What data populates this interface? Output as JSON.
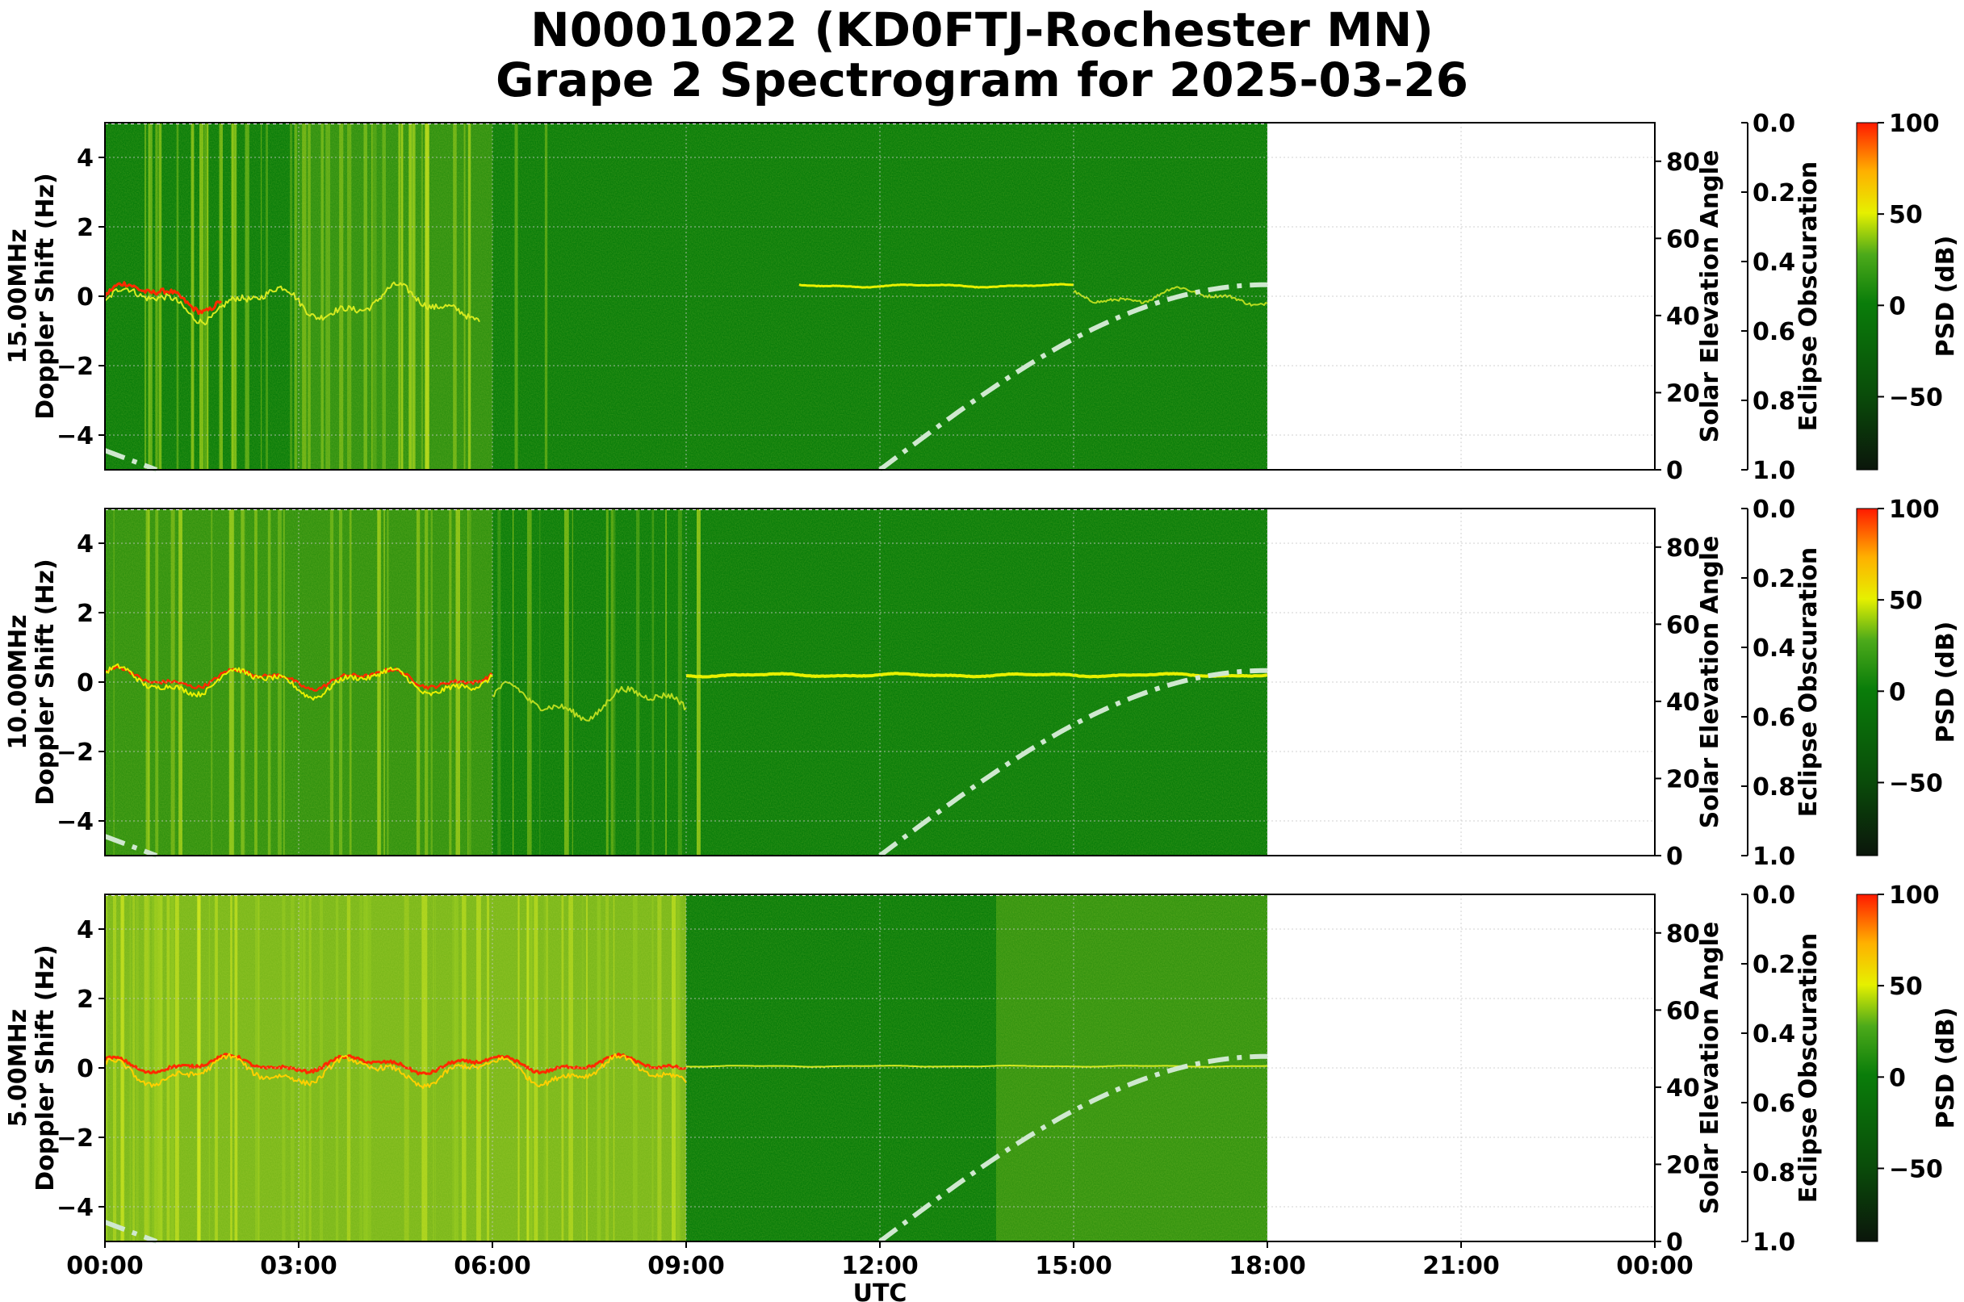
{
  "title_line1": "N0001022 (KD0FTJ-Rochester MN)",
  "title_line2": "Grape 2 Spectrogram for 2025-03-26",
  "chart_data": [
    {
      "type": "heatmap",
      "frequency_label": "15.00MHz",
      "ylabel": "Doppler Shift (Hz)",
      "ylim": [
        -5,
        5
      ],
      "yticks": [
        "−4",
        "−2",
        "0",
        "2",
        "4"
      ],
      "xlim_hours_utc": [
        0,
        24
      ],
      "data_coverage_hours": [
        0,
        18
      ],
      "carrier_shift_hz": {
        "00:00-03:00": 0.0,
        "10:45-15:00": 0.3
      },
      "solar_elevation": {
        "label": "Solar Elevation Angle",
        "ylim": [
          0,
          90
        ],
        "ticks": [
          "0",
          "20",
          "40",
          "60",
          "80"
        ],
        "points": [
          [
            0,
            5
          ],
          [
            12,
            0
          ],
          [
            15,
            33
          ],
          [
            18,
            48
          ]
        ]
      },
      "eclipse": {
        "label": "Eclipse Obscuration",
        "ylim": [
          1.0,
          0.0
        ],
        "ticks": [
          "0.0",
          "0.2",
          "0.4",
          "0.6",
          "0.8",
          "1.0"
        ]
      },
      "colorbar": {
        "label": "PSD (dB)",
        "range": [
          -90,
          100
        ],
        "ticks": [
          "100",
          "50",
          "0",
          "−50"
        ]
      }
    },
    {
      "type": "heatmap",
      "frequency_label": "10.00MHz",
      "ylabel": "Doppler Shift (Hz)",
      "ylim": [
        -5,
        5
      ],
      "yticks": [
        "−4",
        "−2",
        "0",
        "2",
        "4"
      ],
      "xlim_hours_utc": [
        0,
        24
      ],
      "data_coverage_hours": [
        0,
        18
      ],
      "carrier_shift_hz": {
        "00:00-06:00": 0.1,
        "09:00-18:00": 0.2
      },
      "solar_elevation": {
        "label": "Solar Elevation Angle",
        "ylim": [
          0,
          90
        ],
        "ticks": [
          "0",
          "20",
          "40",
          "60",
          "80"
        ],
        "points": [
          [
            0,
            5
          ],
          [
            12,
            0
          ],
          [
            15,
            33
          ],
          [
            18,
            48
          ]
        ]
      },
      "eclipse": {
        "label": "Eclipse Obscuration",
        "ylim": [
          1.0,
          0.0
        ],
        "ticks": [
          "0.0",
          "0.2",
          "0.4",
          "0.6",
          "0.8",
          "1.0"
        ]
      },
      "colorbar": {
        "label": "PSD (dB)",
        "range": [
          -90,
          100
        ],
        "ticks": [
          "100",
          "50",
          "0",
          "−50"
        ]
      }
    },
    {
      "type": "heatmap",
      "frequency_label": "5.00MHz",
      "ylabel": "Doppler Shift (Hz)",
      "ylim": [
        -5,
        5
      ],
      "yticks": [
        "−4",
        "−2",
        "0",
        "2",
        "4"
      ],
      "xlim_hours_utc": [
        0,
        24
      ],
      "data_coverage_hours": [
        0,
        18
      ],
      "carrier_shift_hz": {
        "00:00-09:00": 0.1,
        "09:00-18:00": 0.0
      },
      "solar_elevation": {
        "label": "Solar Elevation Angle",
        "ylim": [
          0,
          90
        ],
        "ticks": [
          "0",
          "20",
          "40",
          "60",
          "80"
        ],
        "points": [
          [
            0,
            5
          ],
          [
            12,
            0
          ],
          [
            15,
            33
          ],
          [
            18,
            48
          ]
        ]
      },
      "eclipse": {
        "label": "Eclipse Obscuration",
        "ylim": [
          1.0,
          0.0
        ],
        "ticks": [
          "0.0",
          "0.2",
          "0.4",
          "0.6",
          "0.8",
          "1.0"
        ]
      },
      "colorbar": {
        "label": "PSD (dB)",
        "range": [
          -90,
          100
        ],
        "ticks": [
          "100",
          "50",
          "0",
          "−50"
        ]
      }
    }
  ],
  "xaxis": {
    "label": "UTC",
    "ticks": [
      "00:00",
      "03:00",
      "06:00",
      "09:00",
      "12:00",
      "15:00",
      "18:00",
      "21:00",
      "00:00"
    ]
  },
  "colors": {
    "background_green": "#0a7d0a",
    "signal_yellow": "#e8f000",
    "signal_red": "#ff2a00",
    "elevation_curve": "#cfe8cf"
  }
}
